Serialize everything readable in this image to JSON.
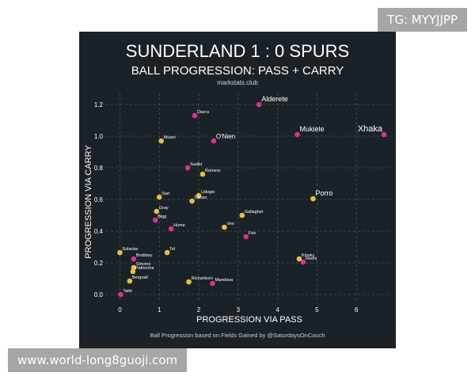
{
  "watermarks": {
    "top_right": "TG: MYYJJPP",
    "bottom_left": "www.world-long8guoji.com"
  },
  "colors": {
    "background": "#1b2227",
    "text": "#ffffff",
    "grid": "#5a636a",
    "carry": "#d8338f",
    "pass": "#e3c04a"
  },
  "chart_data": {
    "type": "scatter",
    "title": "SUNDERLAND 1 : 0 SPURS",
    "subtitle": "BALL PROGRESSION: PASS + CARRY",
    "site": "markstats.club",
    "footnote": "Ball Progression based on Fields Gained by @SaturdaysOnCouch",
    "xlabel": "PROGRESSION VIA PASS",
    "ylabel": "PROGRESSION VIA CARRY",
    "xlim": [
      -0.35,
      6.9
    ],
    "ylim": [
      -0.05,
      1.27
    ],
    "xticks": [
      0,
      1,
      2,
      3,
      4,
      5,
      6
    ],
    "yticks": [
      0.0,
      0.2,
      0.4,
      0.6,
      0.8,
      1.0,
      1.2
    ],
    "grid": true,
    "points": [
      {
        "label": "Alderete",
        "x": 3.53,
        "y": 1.2,
        "team": "carry"
      },
      {
        "label": "Diarra",
        "x": 1.9,
        "y": 1.13,
        "team": "carry"
      },
      {
        "label": "Mukiele",
        "x": 4.5,
        "y": 1.01,
        "team": "carry"
      },
      {
        "label": "Xhaka",
        "x": 6.7,
        "y": 1.01,
        "team": "carry"
      },
      {
        "label": "Muani",
        "x": 1.05,
        "y": 0.97,
        "team": "pass"
      },
      {
        "label": "O'Nien",
        "x": 2.38,
        "y": 0.97,
        "team": "carry"
      },
      {
        "label": "Sadiki",
        "x": 1.72,
        "y": 0.8,
        "team": "carry"
      },
      {
        "label": "Romero",
        "x": 2.1,
        "y": 0.76,
        "team": "pass"
      },
      {
        "label": "Sarr",
        "x": 1.0,
        "y": 0.615,
        "team": "pass"
      },
      {
        "label": "Udogie",
        "x": 2.0,
        "y": 0.625,
        "team": "pass"
      },
      {
        "label": "Danso",
        "x": 1.83,
        "y": 0.59,
        "team": "pass"
      },
      {
        "label": "Porro",
        "x": 4.9,
        "y": 0.605,
        "team": "pass"
      },
      {
        "label": "Gray",
        "x": 0.93,
        "y": 0.525,
        "team": "pass"
      },
      {
        "label": "Gallagher",
        "x": 3.1,
        "y": 0.5,
        "team": "pass"
      },
      {
        "label": "Bigg",
        "x": 0.9,
        "y": 0.47,
        "team": "carry"
      },
      {
        "label": "Hume",
        "x": 1.3,
        "y": 0.415,
        "team": "carry"
      },
      {
        "label": "Ven",
        "x": 2.65,
        "y": 0.425,
        "team": "pass"
      },
      {
        "label": "Fée",
        "x": 3.2,
        "y": 0.365,
        "team": "carry"
      },
      {
        "label": "Solanke",
        "x": 0.0,
        "y": 0.265,
        "team": "pass"
      },
      {
        "label": "Tel",
        "x": 1.2,
        "y": 0.265,
        "team": "pass"
      },
      {
        "label": "Kinsky",
        "x": 4.55,
        "y": 0.225,
        "team": "pass"
      },
      {
        "label": "Brobbey",
        "x": 0.35,
        "y": 0.225,
        "team": "carry"
      },
      {
        "label": "Reefs",
        "x": 4.65,
        "y": 0.205,
        "team": "carry"
      },
      {
        "label": "Simons",
        "x": 0.35,
        "y": 0.17,
        "team": "pass"
      },
      {
        "label": "Pathonha",
        "x": 0.33,
        "y": 0.145,
        "team": "pass"
      },
      {
        "label": "Richarlison",
        "x": 1.75,
        "y": 0.08,
        "team": "pass"
      },
      {
        "label": "Bergvall",
        "x": 0.25,
        "y": 0.085,
        "team": "pass"
      },
      {
        "label": "Mandava",
        "x": 2.35,
        "y": 0.07,
        "team": "carry"
      },
      {
        "label": "Taibi",
        "x": 0.02,
        "y": 0.0,
        "team": "carry"
      }
    ]
  }
}
